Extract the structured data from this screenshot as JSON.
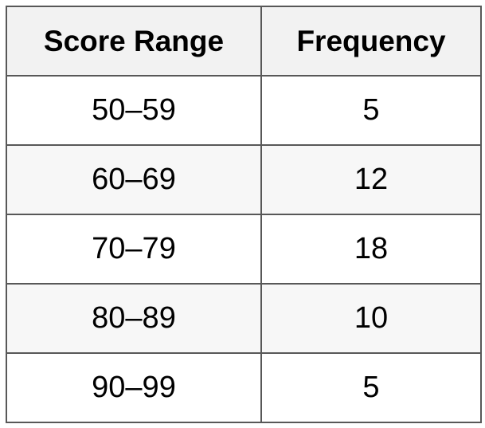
{
  "table": {
    "headers": [
      "Score Range",
      "Frequency"
    ],
    "rows": [
      [
        "50–59",
        "5"
      ],
      [
        "60–69",
        "12"
      ],
      [
        "70–79",
        "18"
      ],
      [
        "80–89",
        "10"
      ],
      [
        "90–99",
        "5"
      ]
    ]
  },
  "colors": {
    "border": "#585858",
    "header_background": "#f2f2f2",
    "stripe_background": "#f7f7f7",
    "text": "#000000"
  }
}
